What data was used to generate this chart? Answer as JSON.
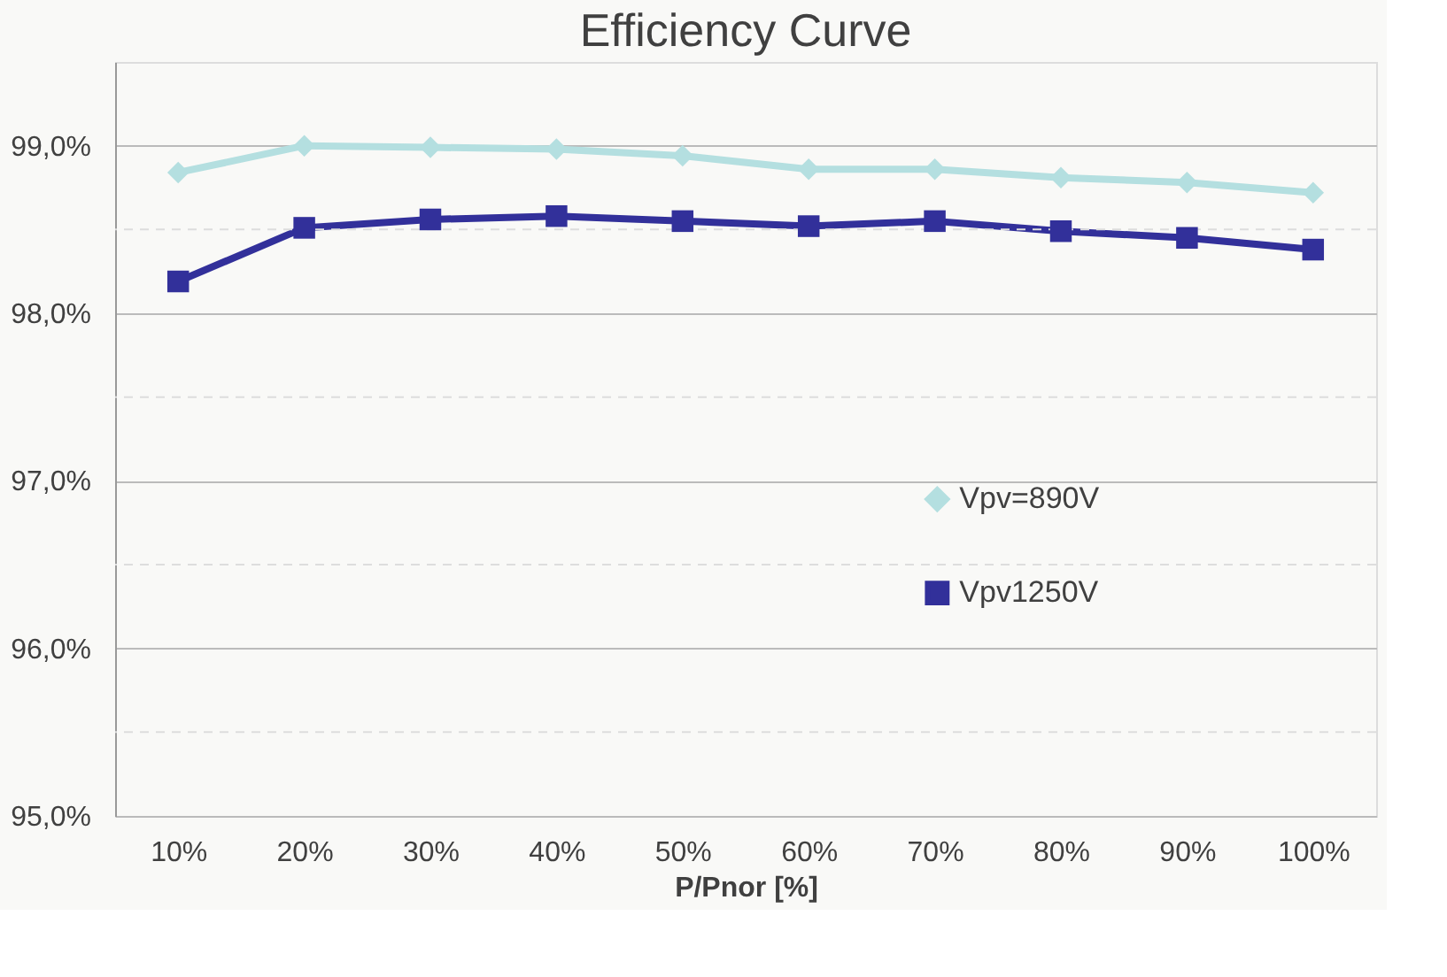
{
  "chart_data": {
    "type": "line",
    "title": "Efficiency Curve",
    "xlabel": "P/Pnor [%]",
    "categories": [
      "10%",
      "20%",
      "30%",
      "40%",
      "50%",
      "60%",
      "70%",
      "80%",
      "90%",
      "100%"
    ],
    "series": [
      {
        "name": "Vpv=890V",
        "color": "#b4dfe0",
        "marker": "diamond",
        "values": [
          98.84,
          99.0,
          98.99,
          98.98,
          98.94,
          98.86,
          98.86,
          98.81,
          98.78,
          98.72
        ]
      },
      {
        "name": "Vpv1250V",
        "color": "#32309a",
        "marker": "square",
        "values": [
          98.19,
          98.51,
          98.56,
          98.58,
          98.55,
          98.52,
          98.55,
          98.49,
          98.45,
          98.38
        ]
      }
    ],
    "ylim": [
      95.0,
      99.5
    ],
    "yticks": [
      {
        "value": 95,
        "label": "95,0%"
      },
      {
        "value": 95.5,
        "label": null
      },
      {
        "value": 96,
        "label": "96,0%"
      },
      {
        "value": 96.5,
        "label": null
      },
      {
        "value": 97,
        "label": "97,0%"
      },
      {
        "value": 97.5,
        "label": null
      },
      {
        "value": 98,
        "label": "98,0%"
      },
      {
        "value": 98.5,
        "label": null
      },
      {
        "value": 99,
        "label": "99,0%"
      }
    ],
    "grid": "y",
    "legend": "right",
    "line_style": "solid"
  }
}
